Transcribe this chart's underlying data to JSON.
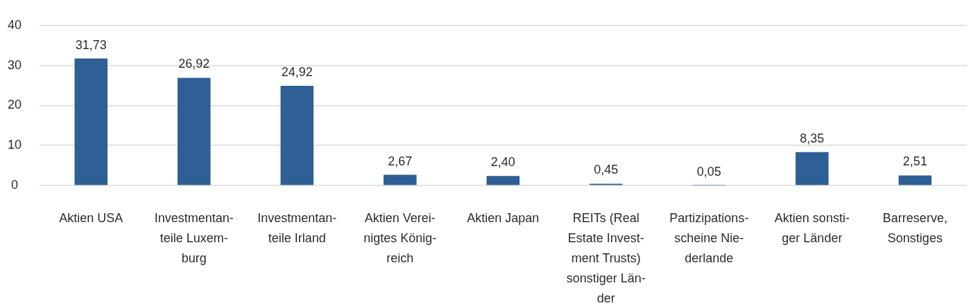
{
  "chart_data": {
    "type": "bar",
    "categories": [
      "Aktien USA",
      "Investmentan-\nteile Luxem-\nburg",
      "Investmentan-\nteile Irland",
      "Aktien Verei-\nnigtes König-\nreich",
      "Aktien Japan",
      "REITs (Real\nEstate Invest-\nment Trusts)\nsonstiger Län-\nder",
      "Partizipations-\nscheine Nie-\nderlande",
      "Aktien sonsti-\nger Länder",
      "Barreserve,\nSonstiges"
    ],
    "values": [
      31.73,
      26.92,
      24.92,
      2.67,
      2.4,
      0.45,
      0.05,
      8.35,
      2.51
    ],
    "value_labels": [
      "31,73",
      "26,92",
      "24,92",
      "2,67",
      "2,40",
      "0,45",
      "0,05",
      "8,35",
      "2,51"
    ],
    "color": "#2e5f95",
    "ylim": [
      0,
      40
    ],
    "yticks": [
      0,
      10,
      20,
      30,
      40
    ],
    "grid": "y"
  }
}
